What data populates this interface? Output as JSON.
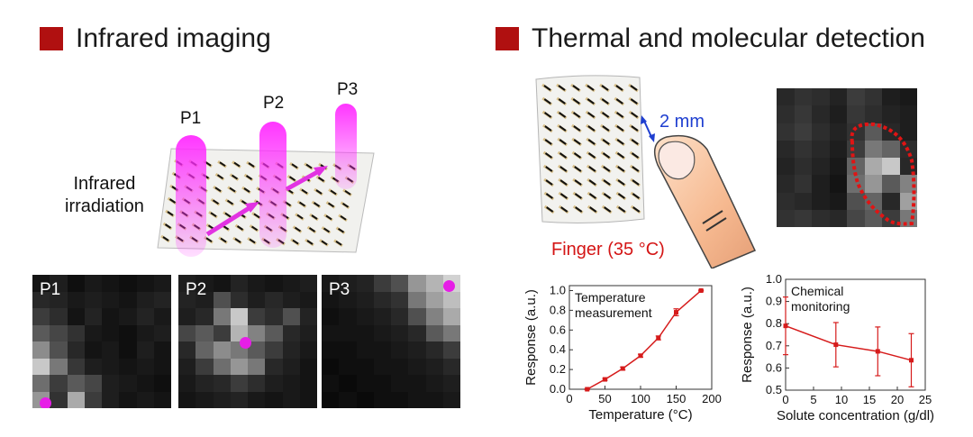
{
  "left_section": {
    "heading": "Infrared imaging",
    "labels": {
      "p1": "P1",
      "p2": "P2",
      "p3": "P3",
      "irradiation_line1": "Infrared",
      "irradiation_line2": "irradiation"
    },
    "panels": [
      {
        "label": "P1",
        "cells": [
          [
            20,
            30,
            15,
            25,
            20,
            15,
            20,
            25
          ],
          [
            40,
            35,
            25,
            30,
            25,
            20,
            30,
            35
          ],
          [
            60,
            45,
            20,
            35,
            20,
            25,
            35,
            25
          ],
          [
            90,
            70,
            50,
            25,
            20,
            15,
            25,
            30
          ],
          [
            140,
            80,
            40,
            20,
            25,
            15,
            30,
            20
          ],
          [
            200,
            120,
            55,
            30,
            25,
            20,
            25,
            20
          ],
          [
            110,
            60,
            90,
            70,
            30,
            25,
            20,
            15
          ],
          [
            150,
            50,
            170,
            60,
            30,
            20,
            25,
            20
          ]
        ]
      },
      {
        "label": "P2",
        "cells": [
          [
            30,
            25,
            20,
            35,
            25,
            20,
            25,
            30
          ],
          [
            35,
            30,
            80,
            45,
            30,
            40,
            30,
            25
          ],
          [
            30,
            40,
            120,
            200,
            60,
            45,
            80,
            35
          ],
          [
            70,
            90,
            60,
            180,
            130,
            90,
            40,
            30
          ],
          [
            40,
            100,
            140,
            120,
            90,
            60,
            35,
            25
          ],
          [
            30,
            60,
            110,
            150,
            120,
            40,
            30,
            20
          ],
          [
            25,
            35,
            40,
            60,
            45,
            30,
            25,
            20
          ],
          [
            20,
            25,
            30,
            35,
            25,
            20,
            25,
            20
          ]
        ]
      },
      {
        "label": "P3",
        "cells": [
          [
            25,
            30,
            35,
            60,
            80,
            150,
            180,
            210
          ],
          [
            20,
            25,
            30,
            40,
            50,
            120,
            160,
            190
          ],
          [
            15,
            20,
            25,
            30,
            40,
            80,
            130,
            170
          ],
          [
            20,
            20,
            20,
            25,
            30,
            40,
            90,
            120
          ],
          [
            15,
            15,
            20,
            20,
            25,
            30,
            40,
            60
          ],
          [
            10,
            15,
            15,
            20,
            20,
            25,
            30,
            40
          ],
          [
            15,
            10,
            15,
            15,
            20,
            20,
            25,
            30
          ],
          [
            10,
            15,
            10,
            15,
            15,
            20,
            20,
            25
          ]
        ]
      }
    ]
  },
  "right_section": {
    "heading": "Thermal and molecular detection",
    "scale_label": "2 mm",
    "finger_label": "Finger (35 °C)",
    "heatmap_cells": [
      [
        40,
        50,
        45,
        35,
        60,
        50,
        30,
        25
      ],
      [
        45,
        55,
        40,
        30,
        55,
        45,
        35,
        30
      ],
      [
        50,
        60,
        45,
        35,
        50,
        90,
        40,
        30
      ],
      [
        40,
        50,
        40,
        30,
        60,
        120,
        100,
        45
      ],
      [
        35,
        45,
        35,
        25,
        100,
        170,
        200,
        40
      ],
      [
        40,
        50,
        30,
        20,
        110,
        150,
        90,
        130
      ],
      [
        45,
        40,
        30,
        25,
        80,
        100,
        40,
        160
      ],
      [
        50,
        55,
        45,
        40,
        70,
        90,
        60,
        120
      ]
    ]
  },
  "chart_data": [
    {
      "type": "line",
      "annotation": [
        "Temperature",
        "measurement"
      ],
      "xlabel": "Temperature (°C)",
      "ylabel": "Response (a.u.)",
      "xlim": [
        0,
        200
      ],
      "ylim": [
        0,
        1.05
      ],
      "xticks": [
        0,
        50,
        100,
        150,
        200
      ],
      "yticks": [
        0.0,
        0.2,
        0.4,
        0.6,
        0.8,
        1.0
      ],
      "x": [
        25,
        50,
        75,
        100,
        125,
        150,
        185
      ],
      "y": [
        0.0,
        0.1,
        0.21,
        0.34,
        0.52,
        0.78,
        1.0
      ],
      "err": [
        0.005,
        0.01,
        0.015,
        0.015,
        0.02,
        0.035,
        0.005
      ],
      "color": "#d61b1b"
    },
    {
      "type": "line",
      "annotation": [
        "Chemical",
        "monitoring"
      ],
      "xlabel": "Solute concentration (g/dl)",
      "ylabel": "Response (a.u.)",
      "xlim": [
        0,
        25
      ],
      "ylim": [
        0.5,
        1.0
      ],
      "xticks": [
        0,
        5,
        10,
        15,
        20,
        25
      ],
      "yticks": [
        0.5,
        0.6,
        0.7,
        0.8,
        0.9,
        1.0
      ],
      "x": [
        0,
        9,
        16.5,
        22.5
      ],
      "y": [
        0.79,
        0.705,
        0.675,
        0.635
      ],
      "err": [
        0.13,
        0.1,
        0.11,
        0.12
      ],
      "color": "#d61b1b"
    }
  ]
}
